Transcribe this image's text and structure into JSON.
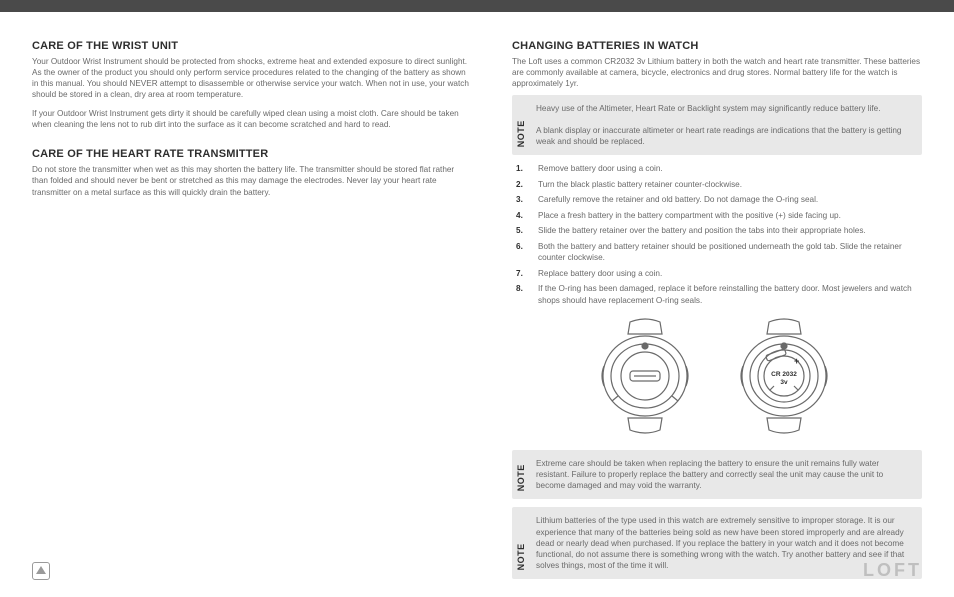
{
  "left": {
    "h1": "CARE OF THE WRIST UNIT",
    "p1": "Your Outdoor Wrist Instrument should be protected from shocks, extreme heat and extended exposure to direct sunlight. As the owner of the product you should only perform service procedures related to the changing of the battery as shown in this manual. You should NEVER attempt to disassemble or otherwise service your watch. When not in use, your watch should be stored in a clean, dry area at room temperature.",
    "p2": "If your Outdoor Wrist Instrument gets dirty it should be carefully wiped clean using a moist cloth. Care should be taken when cleaning the lens not to rub dirt into the surface as it can become scratched and hard to read.",
    "h2": "CARE OF THE HEART RATE TRANSMITTER",
    "p3": "Do not store the transmitter when wet as this may shorten the battery life. The transmitter should be stored flat rather than folded and should never be bent or stretched as this may damage the electrodes.  Never lay your heart rate transmitter on a metal surface as this will quickly drain the battery."
  },
  "right": {
    "h1": "CHANGING BATTERIES IN WATCH",
    "intro": "The Loft uses a common CR2032 3v Lithium battery in both the watch and heart rate transmitter.  These batteries are commonly available at camera, bicycle, electronics and drug stores. Normal battery life for the watch is approximately 1yr.",
    "note1_label": "NOTE",
    "note1": "Heavy use of the Altimeter, Heart Rate or Backlight system may significantly reduce battery life.\nA blank display or inaccurate altimeter or heart rate readings are indications that the battery is getting weak and should be replaced.",
    "steps": [
      "Remove battery door using a coin.",
      "Turn the black plastic battery retainer counter-clockwise.",
      "Carefully remove the retainer and old battery. Do not damage the O-ring seal.",
      "Place a fresh battery in the battery compartment with the positive (+) side facing up.",
      "Slide the battery retainer over the battery and position the tabs into their appropriate holes.",
      "Both the battery and battery retainer should be positioned underneath the gold tab. Slide the retainer counter clockwise.",
      "Replace battery door using a coin.",
      "If the O-ring has been damaged, replace it before reinstalling the battery door. Most jewelers and watch shops should have replacement O-ring seals."
    ],
    "diagram_label1": "CR 2032",
    "diagram_label2": "3v",
    "diagram_plus": "+",
    "note2_label": "NOTE",
    "note2": "Extreme care should be taken when replacing the battery to ensure the unit remains fully water resistant. Failure to properly replace the battery and correctly seal the unit may cause the unit to become damaged and may void the warranty.",
    "note3_label": "NOTE",
    "note3": "Lithium batteries of the type used in this watch are extremely sensitive to improper storage. It is our experience that many of the batteries being sold as new have been stored improperly and are already dead or nearly dead when purchased. If you replace the battery in your watch and it does not become functional, do not assume there is something wrong with the watch. Try another battery and see if that solves things, most of the time it will."
  },
  "footer": {
    "brand": "LOFT"
  },
  "colors": {
    "page_bg": "#ffffff",
    "topbar": "#4a4a4a",
    "heading": "#2e2e2e",
    "body": "#6a6a6a",
    "notebg": "#e8e8e8",
    "brand": "#bfbfbf",
    "stroke": "#6a6a6a"
  }
}
